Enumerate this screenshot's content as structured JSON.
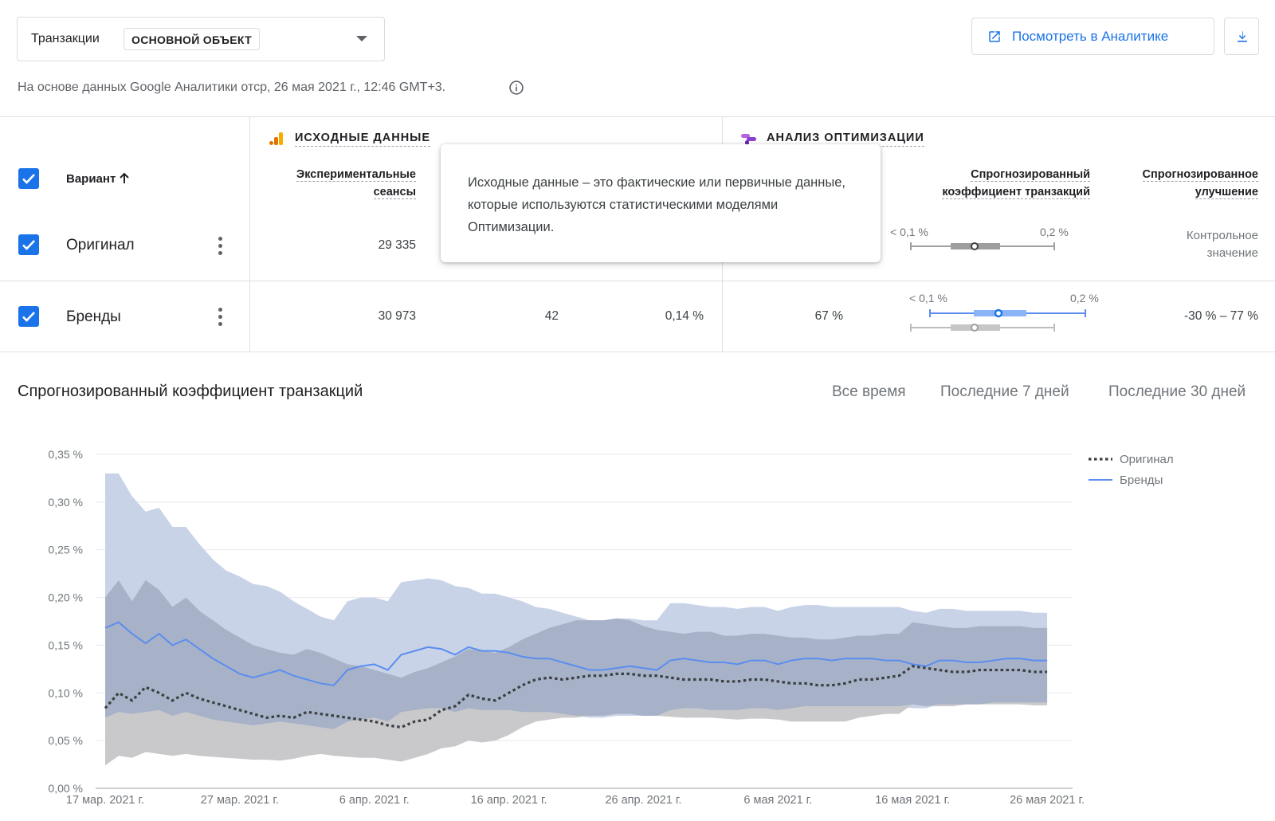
{
  "header": {
    "selector_label": "Транзакции",
    "selector_chip": "основной объект",
    "view_button": "Посмотреть в Аналитике",
    "subtitle": "На основе данных Google Аналитики отср, 26 мая 2021 г., 12:46 GMT+3."
  },
  "table": {
    "section_source": "Исходные данные",
    "section_optimize": "Анализ оптимизации",
    "variant_header": "Вариант",
    "col_sessions_1": "Экспериментальные",
    "col_sessions_2": "сеансы",
    "col_rate_1": "Спрогнозированный",
    "col_rate_2": "коэффициент транзакций",
    "col_improve_1": "Спрогнозированное",
    "col_improve_2": "улучшение",
    "rows": [
      {
        "name": "Оригинал",
        "sessions": "29 335",
        "range_low": "< 0,1 %",
        "range_high": "0,2 %",
        "improvement_1": "Контрольное",
        "improvement_2": "значение"
      },
      {
        "name": "Бренды",
        "sessions": "30 973",
        "transactions": "42",
        "conv_rate": "0,14 %",
        "probability": "67 %",
        "range_low": "< 0,1 %",
        "range_high": "0,2 %",
        "improvement": "-30 % – 77 %"
      }
    ],
    "tooltip": "Исходные данные – это фактические или первичные данные, которые используются статистическими моделями Оптимизации."
  },
  "chart_section": {
    "title": "Спрогнозированный коэффициент транзакций",
    "ranges": [
      "Все время",
      "Последние 7 дней",
      "Последние 30 дней"
    ]
  },
  "colors": {
    "accent": "#1a73e8",
    "brand_line": "#5b8def",
    "brand_band": "#c8d3e8",
    "original_band": "#c9c9cb",
    "overlap_band": "#a7b2c8"
  },
  "chart_data": {
    "type": "area",
    "title": "",
    "xlabel": "",
    "ylabel": "",
    "ylim": [
      0,
      0.35
    ],
    "y_ticks": [
      "0,00 %",
      "0,05 %",
      "0,10 %",
      "0,15 %",
      "0,20 %",
      "0,25 %",
      "0,30 %",
      "0,35 %"
    ],
    "x_ticks": [
      "17 мар. 2021 г.",
      "27 мар. 2021 г.",
      "6 апр. 2021 г.",
      "16 апр. 2021 г.",
      "26 апр. 2021 г.",
      "6 мая 2021 г.",
      "16 мая 2021 г.",
      "26 мая 2021 г."
    ],
    "legend": "top-right",
    "x_days": [
      0,
      1,
      2,
      3,
      4,
      5,
      6,
      7,
      8,
      9,
      10,
      11,
      12,
      13,
      14,
      15,
      16,
      17,
      18,
      19,
      20,
      21,
      22,
      23,
      24,
      25,
      26,
      27,
      28,
      29,
      30,
      31,
      32,
      33,
      34,
      35,
      36,
      37,
      38,
      39,
      40,
      41,
      42,
      43,
      44,
      45,
      46,
      47,
      48,
      49,
      50,
      51,
      52,
      53,
      54,
      55,
      56,
      57,
      58,
      59,
      60,
      61,
      62,
      63,
      64,
      65,
      66,
      67,
      68,
      69,
      70
    ],
    "series": [
      {
        "name": "Оригинал",
        "style": "dotted",
        "values": [
          0.084,
          0.1,
          0.092,
          0.106,
          0.1,
          0.092,
          0.1,
          0.094,
          0.09,
          0.086,
          0.082,
          0.078,
          0.074,
          0.076,
          0.074,
          0.08,
          0.078,
          0.076,
          0.074,
          0.072,
          0.07,
          0.066,
          0.064,
          0.07,
          0.072,
          0.082,
          0.086,
          0.098,
          0.094,
          0.092,
          0.1,
          0.108,
          0.114,
          0.116,
          0.114,
          0.116,
          0.118,
          0.118,
          0.12,
          0.12,
          0.118,
          0.118,
          0.116,
          0.114,
          0.114,
          0.114,
          0.112,
          0.112,
          0.114,
          0.114,
          0.112,
          0.11,
          0.11,
          0.108,
          0.108,
          0.11,
          0.114,
          0.114,
          0.116,
          0.118,
          0.128,
          0.126,
          0.124,
          0.122,
          0.122,
          0.124,
          0.124,
          0.124,
          0.124,
          0.122,
          0.122
        ],
        "lower": [
          0.024,
          0.034,
          0.032,
          0.038,
          0.036,
          0.034,
          0.036,
          0.034,
          0.033,
          0.032,
          0.031,
          0.03,
          0.03,
          0.029,
          0.031,
          0.034,
          0.036,
          0.034,
          0.033,
          0.032,
          0.032,
          0.03,
          0.028,
          0.032,
          0.036,
          0.042,
          0.044,
          0.05,
          0.048,
          0.05,
          0.056,
          0.064,
          0.07,
          0.072,
          0.074,
          0.074,
          0.076,
          0.076,
          0.078,
          0.078,
          0.076,
          0.076,
          0.075,
          0.074,
          0.074,
          0.074,
          0.073,
          0.072,
          0.073,
          0.073,
          0.072,
          0.07,
          0.07,
          0.07,
          0.07,
          0.07,
          0.074,
          0.076,
          0.078,
          0.078,
          0.088,
          0.086,
          0.086,
          0.086,
          0.088,
          0.088,
          0.088,
          0.088,
          0.088,
          0.087,
          0.087
        ],
        "upper": [
          0.2,
          0.218,
          0.196,
          0.218,
          0.208,
          0.19,
          0.2,
          0.186,
          0.176,
          0.166,
          0.158,
          0.15,
          0.146,
          0.142,
          0.14,
          0.146,
          0.142,
          0.136,
          0.13,
          0.128,
          0.124,
          0.12,
          0.116,
          0.122,
          0.126,
          0.132,
          0.138,
          0.146,
          0.144,
          0.142,
          0.148,
          0.156,
          0.162,
          0.168,
          0.172,
          0.176,
          0.176,
          0.176,
          0.178,
          0.176,
          0.17,
          0.166,
          0.164,
          0.162,
          0.164,
          0.164,
          0.16,
          0.16,
          0.162,
          0.162,
          0.16,
          0.158,
          0.158,
          0.156,
          0.156,
          0.158,
          0.16,
          0.16,
          0.162,
          0.162,
          0.174,
          0.172,
          0.17,
          0.168,
          0.168,
          0.17,
          0.17,
          0.17,
          0.17,
          0.168,
          0.168
        ]
      },
      {
        "name": "Бренды",
        "style": "solid",
        "values": [
          0.168,
          0.174,
          0.162,
          0.152,
          0.162,
          0.15,
          0.156,
          0.146,
          0.136,
          0.128,
          0.12,
          0.116,
          0.12,
          0.124,
          0.118,
          0.114,
          0.11,
          0.108,
          0.124,
          0.128,
          0.13,
          0.124,
          0.14,
          0.144,
          0.148,
          0.146,
          0.14,
          0.148,
          0.144,
          0.144,
          0.142,
          0.138,
          0.136,
          0.136,
          0.132,
          0.128,
          0.124,
          0.124,
          0.126,
          0.128,
          0.126,
          0.124,
          0.134,
          0.136,
          0.134,
          0.132,
          0.132,
          0.13,
          0.134,
          0.134,
          0.13,
          0.134,
          0.136,
          0.136,
          0.134,
          0.136,
          0.136,
          0.136,
          0.134,
          0.134,
          0.13,
          0.128,
          0.134,
          0.134,
          0.132,
          0.132,
          0.134,
          0.136,
          0.136,
          0.134,
          0.134
        ],
        "lower": [
          0.074,
          0.08,
          0.078,
          0.08,
          0.082,
          0.076,
          0.08,
          0.076,
          0.072,
          0.07,
          0.068,
          0.066,
          0.068,
          0.07,
          0.068,
          0.066,
          0.064,
          0.062,
          0.07,
          0.072,
          0.074,
          0.07,
          0.08,
          0.082,
          0.084,
          0.084,
          0.08,
          0.084,
          0.082,
          0.082,
          0.082,
          0.08,
          0.08,
          0.08,
          0.078,
          0.076,
          0.074,
          0.074,
          0.076,
          0.076,
          0.076,
          0.076,
          0.082,
          0.084,
          0.084,
          0.082,
          0.082,
          0.082,
          0.084,
          0.084,
          0.082,
          0.084,
          0.086,
          0.086,
          0.086,
          0.086,
          0.086,
          0.086,
          0.086,
          0.086,
          0.084,
          0.084,
          0.088,
          0.088,
          0.088,
          0.088,
          0.09,
          0.09,
          0.09,
          0.09,
          0.09
        ],
        "upper": [
          0.33,
          0.33,
          0.306,
          0.29,
          0.294,
          0.274,
          0.274,
          0.256,
          0.24,
          0.228,
          0.222,
          0.214,
          0.212,
          0.206,
          0.196,
          0.188,
          0.18,
          0.176,
          0.196,
          0.2,
          0.2,
          0.196,
          0.216,
          0.218,
          0.22,
          0.218,
          0.212,
          0.21,
          0.204,
          0.204,
          0.2,
          0.196,
          0.19,
          0.188,
          0.184,
          0.18,
          0.176,
          0.176,
          0.178,
          0.178,
          0.176,
          0.176,
          0.194,
          0.194,
          0.192,
          0.19,
          0.19,
          0.188,
          0.19,
          0.19,
          0.186,
          0.19,
          0.192,
          0.192,
          0.19,
          0.19,
          0.19,
          0.19,
          0.19,
          0.19,
          0.186,
          0.184,
          0.188,
          0.188,
          0.186,
          0.186,
          0.186,
          0.186,
          0.186,
          0.184,
          0.184
        ]
      }
    ]
  }
}
